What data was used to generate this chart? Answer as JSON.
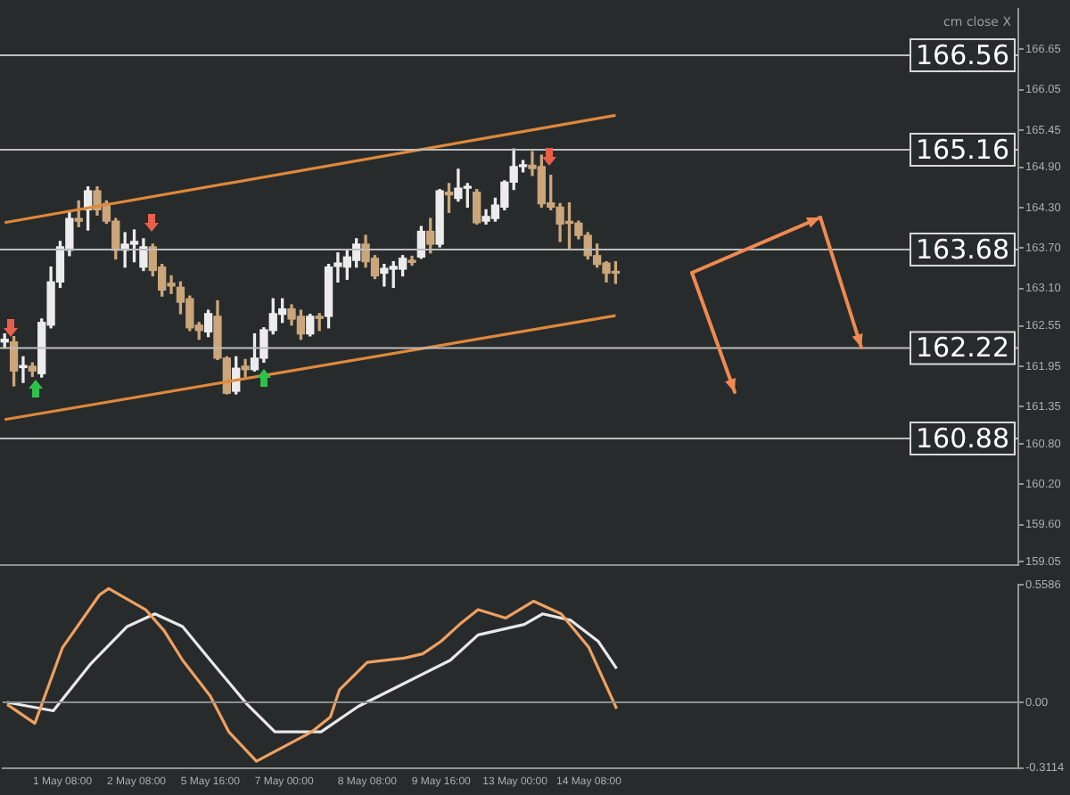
{
  "chart_data": [
    {
      "type": "candlestick",
      "categories": [
        null,
        null,
        null,
        null,
        null,
        null,
        null,
        null,
        null,
        null,
        null,
        null,
        null,
        null,
        null,
        null,
        null,
        null,
        null,
        null,
        null,
        null,
        null,
        null,
        null,
        null,
        null,
        null,
        null,
        null,
        null,
        null,
        null,
        null,
        null,
        null,
        null,
        null,
        null,
        null,
        null,
        null,
        null,
        null,
        null,
        null,
        null,
        null,
        null,
        null,
        null,
        null,
        null,
        null,
        null,
        null,
        null,
        null,
        null,
        null,
        null,
        null,
        null,
        null,
        null,
        null,
        null,
        null,
        null,
        null,
        null,
        null,
        null,
        null,
        null,
        null,
        null,
        null,
        null,
        null,
        null,
        null,
        null,
        null,
        null,
        null,
        null,
        null,
        null,
        null,
        null,
        null,
        null,
        null,
        null,
        null,
        null,
        null,
        null,
        null,
        null,
        null,
        null,
        null,
        null,
        null,
        null,
        null,
        null,
        null
      ],
      "ohlc": [
        [
          162.31,
          162.43,
          162.22,
          162.35
        ],
        [
          162.31,
          162.39,
          161.66,
          161.88
        ],
        [
          161.93,
          162.09,
          161.71,
          161.96
        ],
        [
          161.95,
          162.0,
          161.8,
          161.88
        ],
        [
          161.84,
          162.65,
          161.79,
          162.6
        ],
        [
          162.56,
          163.42,
          162.52,
          163.2
        ],
        [
          163.2,
          163.8,
          163.12,
          163.72
        ],
        [
          163.67,
          164.23,
          163.59,
          164.14
        ],
        [
          164.14,
          164.4,
          164.02,
          164.1
        ],
        [
          164.27,
          164.61,
          163.97,
          164.55
        ],
        [
          164.55,
          164.61,
          164.19,
          164.27
        ],
        [
          164.36,
          164.4,
          164.07,
          164.1
        ],
        [
          164.1,
          164.14,
          163.54,
          163.67
        ],
        [
          163.67,
          163.93,
          163.42,
          163.76
        ],
        [
          163.76,
          163.97,
          163.5,
          163.8
        ],
        [
          163.42,
          163.84,
          163.37,
          163.72
        ],
        [
          163.72,
          163.76,
          163.29,
          163.37
        ],
        [
          163.42,
          163.46,
          162.99,
          163.08
        ],
        [
          163.18,
          163.29,
          163.03,
          163.14
        ],
        [
          163.12,
          163.2,
          162.73,
          162.9
        ],
        [
          162.95,
          162.99,
          162.48,
          162.52
        ],
        [
          162.56,
          162.6,
          162.35,
          162.48
        ],
        [
          162.46,
          162.78,
          162.39,
          162.73
        ],
        [
          162.69,
          162.92,
          162.05,
          162.07
        ],
        [
          162.07,
          162.09,
          161.54,
          161.55
        ],
        [
          161.58,
          162.09,
          161.54,
          161.92
        ],
        [
          161.95,
          162.05,
          161.79,
          161.9
        ],
        [
          161.9,
          162.43,
          161.88,
          162.07
        ],
        [
          162.07,
          162.52,
          162.01,
          162.49
        ],
        [
          162.48,
          162.95,
          162.43,
          162.73
        ],
        [
          162.72,
          162.95,
          162.6,
          162.8
        ],
        [
          162.8,
          162.86,
          162.56,
          162.65
        ],
        [
          162.69,
          162.78,
          162.35,
          162.43
        ],
        [
          162.43,
          162.72,
          162.4,
          162.69
        ],
        [
          162.69,
          162.73,
          162.48,
          162.66
        ],
        [
          162.69,
          163.46,
          162.52,
          163.42
        ],
        [
          163.43,
          163.63,
          163.2,
          163.48
        ],
        [
          163.42,
          163.67,
          163.24,
          163.57
        ],
        [
          163.52,
          163.84,
          163.42,
          163.76
        ],
        [
          163.76,
          163.89,
          163.42,
          163.5
        ],
        [
          163.55,
          163.59,
          163.25,
          163.29
        ],
        [
          163.33,
          163.46,
          163.14,
          163.4
        ],
        [
          163.39,
          163.5,
          163.12,
          163.43
        ],
        [
          163.39,
          163.59,
          163.29,
          163.55
        ],
        [
          163.52,
          163.58,
          163.45,
          163.49
        ],
        [
          163.57,
          164.02,
          163.55,
          163.95
        ],
        [
          163.95,
          164.14,
          163.63,
          163.76
        ],
        [
          163.76,
          164.57,
          163.72,
          164.55
        ],
        [
          164.53,
          164.66,
          164.23,
          164.49
        ],
        [
          164.44,
          164.87,
          164.4,
          164.59
        ],
        [
          164.59,
          164.66,
          164.31,
          164.61
        ],
        [
          164.53,
          164.57,
          164.06,
          164.08
        ],
        [
          164.1,
          164.27,
          164.06,
          164.17
        ],
        [
          164.14,
          164.44,
          164.1,
          164.34
        ],
        [
          164.31,
          164.7,
          164.27,
          164.68
        ],
        [
          164.68,
          165.17,
          164.57,
          164.91
        ],
        [
          164.91,
          165.0,
          164.83,
          164.93
        ],
        [
          164.93,
          165.13,
          164.78,
          164.88
        ],
        [
          164.91,
          165.08,
          164.31,
          164.36
        ],
        [
          164.37,
          164.78,
          164.27,
          164.31
        ],
        [
          164.31,
          164.36,
          163.8,
          164.06
        ],
        [
          164.08,
          164.37,
          163.69,
          164.07
        ],
        [
          164.07,
          164.1,
          163.84,
          163.89
        ],
        [
          163.89,
          163.93,
          163.54,
          163.59
        ],
        [
          163.59,
          163.76,
          163.42,
          163.46
        ],
        [
          163.48,
          163.5,
          163.2,
          163.33
        ],
        [
          163.35,
          163.5,
          163.18,
          163.33
        ],
        null,
        null,
        null,
        null,
        null,
        null,
        null,
        null,
        null,
        null,
        null,
        null,
        null,
        null,
        null,
        null,
        null,
        null,
        null,
        null,
        null,
        null,
        null,
        null,
        null,
        null,
        null,
        null,
        null,
        null,
        null,
        null,
        null,
        null,
        null,
        null,
        null,
        null,
        null,
        null,
        null,
        null,
        null
      ],
      "series": [
        {
          "type": "line",
          "color": "#e0883a",
          "values": [
            164.08,
            null,
            null,
            null,
            null,
            null,
            null,
            null,
            null,
            null,
            null,
            null,
            null,
            null,
            null,
            null,
            null,
            null,
            null,
            null,
            null,
            null,
            null,
            null,
            null,
            null,
            null,
            null,
            null,
            null,
            null,
            null,
            null,
            null,
            null,
            null,
            null,
            null,
            null,
            null,
            null,
            null,
            null,
            null,
            null,
            null,
            null,
            null,
            null,
            null,
            null,
            null,
            null,
            null,
            null,
            null,
            null,
            null,
            null,
            null,
            null,
            null,
            null,
            null,
            null,
            null,
            165.67,
            null,
            null,
            null,
            null,
            null,
            null,
            null,
            null,
            null,
            null,
            null,
            null,
            null,
            null,
            null,
            null,
            null,
            null,
            null,
            null,
            null,
            null,
            null,
            null,
            null,
            null,
            null,
            null,
            null,
            null,
            null,
            null,
            null,
            null,
            null,
            null,
            null,
            null,
            null,
            null,
            null,
            null,
            null
          ]
        },
        {
          "type": "line",
          "color": "#e0883a",
          "values": [
            161.16,
            null,
            null,
            null,
            null,
            null,
            null,
            null,
            null,
            null,
            null,
            null,
            null,
            null,
            null,
            null,
            null,
            null,
            null,
            null,
            null,
            null,
            null,
            null,
            null,
            null,
            null,
            null,
            null,
            null,
            null,
            null,
            null,
            null,
            null,
            null,
            null,
            null,
            null,
            null,
            null,
            null,
            null,
            null,
            null,
            null,
            null,
            null,
            null,
            null,
            null,
            null,
            null,
            null,
            null,
            null,
            null,
            null,
            null,
            null,
            null,
            null,
            null,
            null,
            null,
            null,
            162.7,
            null,
            null,
            null,
            null,
            null,
            null,
            null,
            null,
            null,
            null,
            null,
            null,
            null,
            null,
            null,
            null,
            null,
            null,
            null,
            null,
            null,
            null,
            null,
            null,
            null,
            null,
            null,
            null,
            null,
            null,
            null,
            null,
            null,
            null,
            null,
            null,
            null,
            null,
            null,
            null,
            null,
            null,
            null
          ]
        }
      ],
      "ylim": [
        159.0,
        167.25
      ],
      "yticks": [
        166.65,
        166.05,
        165.45,
        {
          "value": 164.9,
          "label": "164.90"
        },
        {
          "value": 164.3,
          "label": "164.30"
        },
        {
          "value": 163.7,
          "label": "163.70"
        },
        {
          "value": 163.1,
          "label": "163.10"
        },
        162.55,
        161.95,
        161.35,
        {
          "value": 160.8,
          "label": "160.80"
        },
        {
          "value": 160.2,
          "label": "160.20"
        },
        {
          "value": 159.6,
          "label": "159.60"
        },
        159.05
      ],
      "tick_labels": "y",
      "ref_lines": [
        {
          "axis": "y",
          "value": 166.56,
          "label": "166.56"
        },
        {
          "axis": "y",
          "value": 165.16,
          "label": "165.16"
        },
        {
          "axis": "y",
          "value": 163.68,
          "label": "163.68"
        },
        {
          "axis": "y",
          "value": 162.22,
          "label": "162.22"
        },
        {
          "axis": "y",
          "value": 160.88,
          "label": "160.88"
        }
      ],
      "annotations": [
        "cm close X"
      ]
    },
    {
      "type": "line",
      "categories": [
        null,
        null,
        null,
        null,
        null,
        null,
        "1 May 08:00",
        null,
        null,
        null,
        null,
        null,
        null,
        null,
        "2 May 08:00",
        null,
        null,
        null,
        null,
        null,
        null,
        null,
        "5 May 16:00",
        null,
        null,
        null,
        null,
        null,
        null,
        null,
        "7 May 00:00",
        null,
        null,
        null,
        null,
        null,
        null,
        null,
        null,
        "8 May 08:00",
        null,
        null,
        null,
        null,
        null,
        null,
        null,
        "9 May 16:00",
        null,
        null,
        null,
        null,
        null,
        null,
        null,
        "13 May 00:00",
        null,
        null,
        null,
        null,
        null,
        null,
        null,
        "14 May 08:00",
        null,
        null,
        null,
        null,
        null,
        null,
        null,
        null,
        null,
        null,
        null,
        null,
        null,
        null,
        null,
        null,
        null,
        null,
        null,
        null,
        null,
        null,
        null,
        null,
        null,
        null,
        null,
        null,
        null,
        null,
        null,
        null,
        null,
        null,
        null,
        null,
        null,
        null,
        null,
        null,
        null,
        null,
        null,
        null,
        null,
        null
      ],
      "series": [
        {
          "color": "#f0a060",
          "values": [
            -0.01,
            null,
            null,
            -0.1,
            null,
            null,
            0.26,
            null,
            null,
            null,
            0.51,
            0.54,
            null,
            null,
            null,
            0.44,
            null,
            0.34,
            null,
            0.2,
            null,
            null,
            0.03,
            null,
            -0.14,
            null,
            null,
            -0.28,
            null,
            null,
            -0.21,
            null,
            null,
            -0.14,
            null,
            -0.07,
            0.06,
            null,
            null,
            0.19,
            null,
            null,
            null,
            0.21,
            null,
            0.23,
            null,
            0.29,
            null,
            0.37,
            null,
            0.44,
            null,
            null,
            0.4,
            null,
            null,
            0.48,
            null,
            null,
            0.42,
            null,
            null,
            0.26,
            null,
            null,
            -0.03,
            null,
            null,
            null,
            null,
            null,
            null,
            null,
            null,
            null,
            null,
            null,
            null,
            null,
            null,
            null,
            null,
            null,
            null,
            null,
            null,
            null,
            null,
            null,
            null,
            null,
            null,
            null,
            null,
            null,
            null,
            null,
            null,
            null,
            null,
            null,
            null,
            null,
            null,
            null,
            null,
            null,
            null,
            null
          ]
        },
        {
          "color": "#e8e8e8",
          "values": [
            0,
            null,
            null,
            null,
            null,
            -0.04,
            null,
            null,
            null,
            0.18,
            null,
            null,
            null,
            0.36,
            null,
            null,
            0.42,
            null,
            null,
            0.36,
            null,
            null,
            0.2,
            null,
            null,
            null,
            -0.01,
            null,
            null,
            -0.14,
            null,
            null,
            null,
            null,
            -0.14,
            null,
            null,
            null,
            -0.02,
            null,
            null,
            null,
            null,
            0.09,
            null,
            null,
            null,
            null,
            0.2,
            null,
            null,
            0.32,
            null,
            null,
            null,
            null,
            0.37,
            null,
            0.42,
            null,
            null,
            0.39,
            null,
            null,
            0.29,
            null,
            0.16,
            null,
            null,
            null,
            null,
            null,
            null,
            null,
            null,
            null,
            null,
            null,
            null,
            null,
            null,
            null,
            null,
            null,
            null,
            null,
            null,
            null,
            null,
            null,
            null,
            null,
            null,
            null,
            null,
            null,
            null,
            null,
            null,
            null,
            null,
            null,
            null,
            null,
            null,
            null,
            null,
            null,
            null,
            null
          ]
        }
      ],
      "ylim": [
        -0.3114,
        0.5586
      ],
      "yticks": [
        0.5586,
        {
          "value": 0,
          "label": "0.00"
        },
        -0.3114
      ],
      "ref_lines": [
        {
          "axis": "y",
          "value": 0,
          "color": "#8c9090"
        }
      ]
    }
  ]
}
